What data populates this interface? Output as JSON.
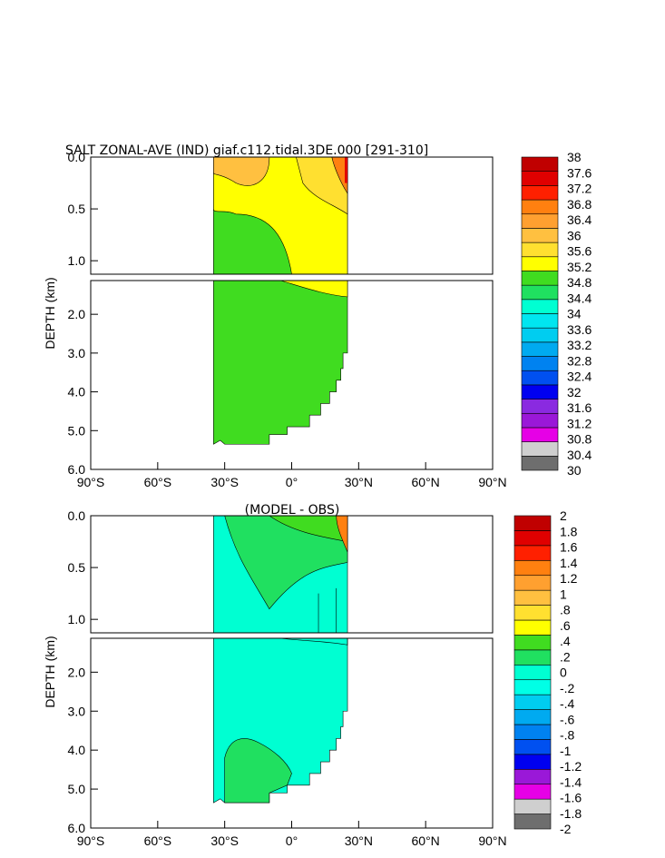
{
  "chart_data": [
    {
      "type": "heatmap",
      "title": "SALT ZONAL-AVE (IND) giaf.c112.tidal.3DE.000 [291-310]",
      "ylabel": "DEPTH (km)",
      "xlabel": "",
      "x_ticks": [
        "90°S",
        "60°S",
        "30°S",
        "0°",
        "30°N",
        "60°N",
        "90°N"
      ],
      "y_ticks_upper": [
        "0.0",
        "0.5",
        "1.0"
      ],
      "y_ticks_lower": [
        "2.0",
        "3.0",
        "4.0",
        "5.0",
        "6.0"
      ],
      "xlim": [
        -90,
        90
      ],
      "ylim_km": [
        0,
        6
      ],
      "colorbar_levels": [
        "30",
        "30.4",
        "30.8",
        "31.2",
        "31.6",
        "32",
        "32.4",
        "32.8",
        "33.2",
        "33.6",
        "34",
        "34.4",
        "34.8",
        "35.2",
        "35.6",
        "36",
        "36.4",
        "36.8",
        "37.2",
        "37.6",
        "38"
      ],
      "colorbar_colors": [
        "#6e6e6e",
        "#cfcfcf",
        "#e600e6",
        "#9a18d8",
        "#8a2ae0",
        "#0000f0",
        "#0050f0",
        "#0082f0",
        "#00aaf0",
        "#00cdf0",
        "#00e6f0",
        "#00ffd2",
        "#20e060",
        "#40dc20",
        "#ffff00",
        "#ffe030",
        "#ffc040",
        "#ffa030",
        "#ff8010",
        "#ff2000",
        "#e00000",
        "#c00000"
      ],
      "region_colors": {
        "main": "#40dc20",
        "upper": "#ffff00",
        "high": "#ffc040",
        "peak": "#ff8010"
      }
    },
    {
      "type": "heatmap",
      "title": "(MODEL - OBS)",
      "ylabel": "DEPTH (km)",
      "xlabel": "",
      "x_ticks": [
        "90°S",
        "60°S",
        "30°S",
        "0°",
        "30°N",
        "60°N",
        "90°N"
      ],
      "y_ticks_upper": [
        "0.0",
        "0.5",
        "1.0"
      ],
      "y_ticks_lower": [
        "2.0",
        "3.0",
        "4.0",
        "5.0",
        "6.0"
      ],
      "xlim": [
        -90,
        90
      ],
      "ylim_km": [
        0,
        6
      ],
      "colorbar_levels": [
        "-2",
        "-1.8",
        "-1.6",
        "-1.4",
        "-1.2",
        "-1",
        "-.8",
        "-.6",
        "-.4",
        "-.2",
        "0",
        ".2",
        ".4",
        ".6",
        ".8",
        "1",
        "1.2",
        "1.4",
        "1.6",
        "1.8",
        "2"
      ],
      "colorbar_colors": [
        "#6e6e6e",
        "#cfcfcf",
        "#e600e6",
        "#9a18d8",
        "#0000f0",
        "#0050f0",
        "#0082f0",
        "#00aaf0",
        "#00cdf0",
        "#00ffe6",
        "#00ffd2",
        "#20e060",
        "#40dc20",
        "#ffff00",
        "#ffe030",
        "#ffc040",
        "#ffa030",
        "#ff8010",
        "#ff2000",
        "#e00000",
        "#c00000"
      ],
      "region_colors": {
        "main": "#00ffd2",
        "green": "#20e060",
        "light": "#40dc20",
        "peak": "#ff8010"
      }
    }
  ]
}
